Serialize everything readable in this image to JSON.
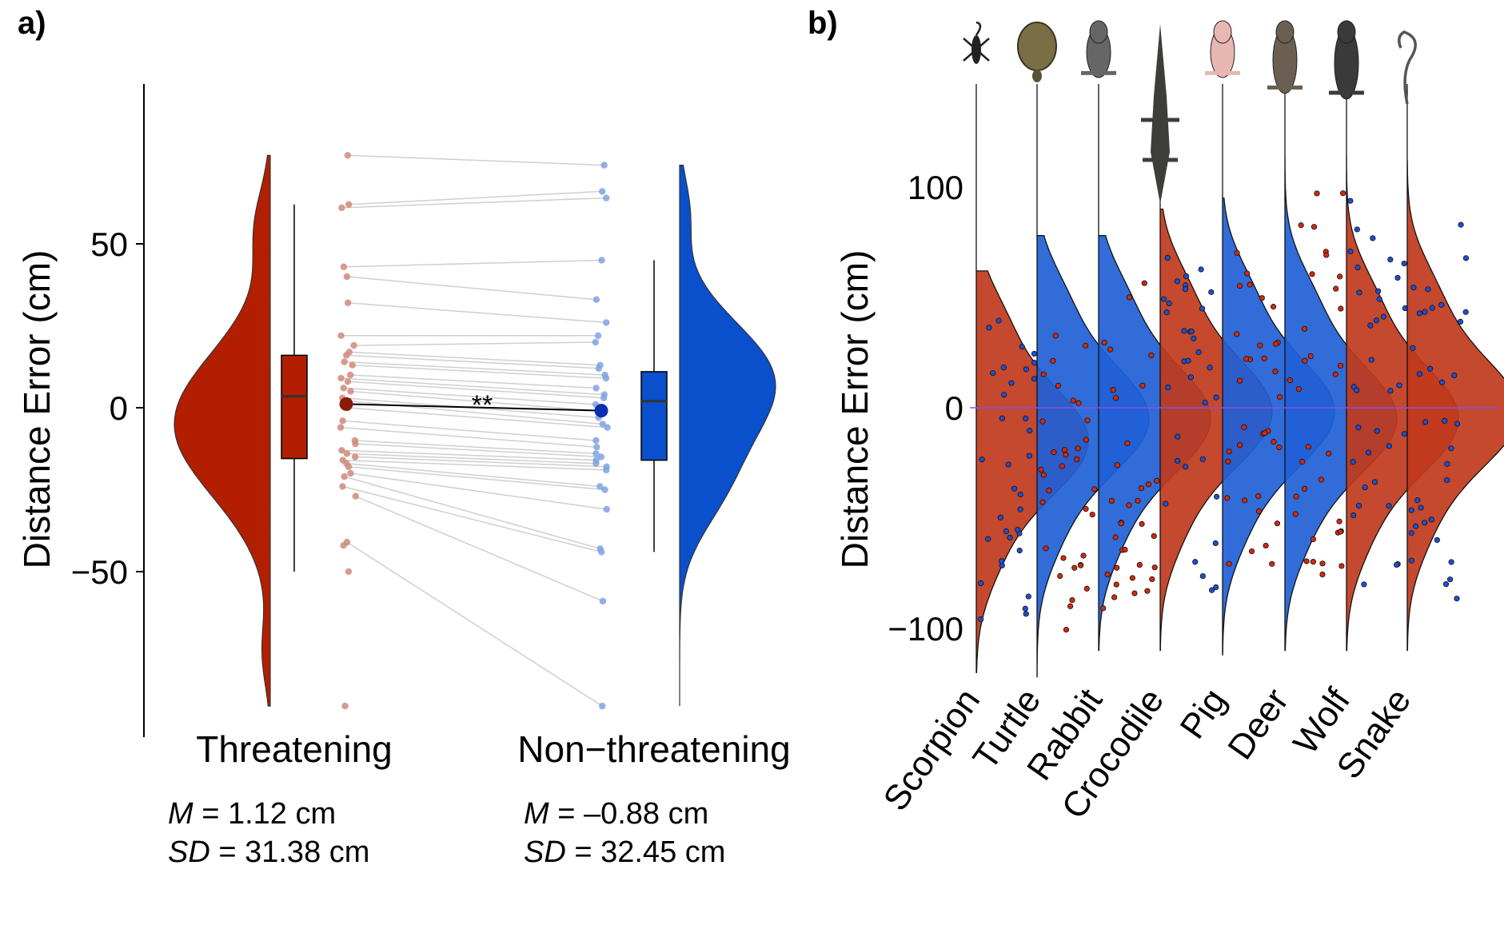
{
  "panel_labels": {
    "a": "a)",
    "b": "b)"
  },
  "chart_data": [
    {
      "type": "raincloud",
      "panel": "a)",
      "ylabel": "Distance Error (cm)",
      "yticks": [
        50,
        0,
        -50
      ],
      "ytick_labels": [
        "50",
        "0",
        "−50"
      ],
      "ylim": [
        -100,
        98
      ],
      "significance": "**",
      "colors": {
        "threatening": "#B21F00",
        "non_threatening": "#0A4FCC"
      },
      "series": [
        {
          "name": "Threatening",
          "mean": 1.12,
          "box": {
            "min": -50,
            "q1": -15.5,
            "median": 3.5,
            "q3": 16,
            "max": 62
          },
          "points": [
            77,
            62,
            61,
            43,
            40,
            32,
            22,
            19,
            17,
            16,
            14,
            13,
            10,
            9,
            8,
            6,
            5,
            3,
            2,
            0,
            -4,
            -6,
            -10,
            -11,
            -13,
            -14,
            -15,
            -16,
            -17,
            -18,
            -20,
            -21,
            -24,
            -27,
            -41,
            -42,
            -50,
            -91
          ],
          "stats": {
            "M_label": "M",
            "M_value": " = 1.12 cm",
            "SD_label": "SD",
            "SD_value": " = 31.38 cm"
          }
        },
        {
          "name": "Non−threatening",
          "mean": -0.88,
          "box": {
            "min": -44,
            "q1": -16,
            "median": 2,
            "q3": 11,
            "max": 45
          },
          "points": [
            74,
            66,
            64,
            45,
            33,
            26,
            22,
            20,
            13,
            12,
            10,
            9,
            6,
            4,
            3,
            1,
            -1,
            -3,
            -5,
            -6,
            -10,
            -12,
            -14,
            -15,
            -16,
            -17,
            -18,
            -19,
            -24,
            -25,
            -31,
            -43,
            -44,
            -59,
            -91
          ],
          "stats": {
            "M_label": "M",
            "M_value": " = –0.88 cm",
            "SD_label": "SD",
            "SD_value": " = 32.45 cm"
          }
        }
      ]
    },
    {
      "type": "violin",
      "panel": "b)",
      "ylabel": "Distance Error (cm)",
      "yticks": [
        100,
        0,
        -100
      ],
      "ytick_labels": [
        "100",
        "0",
        "−100"
      ],
      "ylim": [
        -130,
        165
      ],
      "reference_line": 0,
      "categories": [
        "Scorpion",
        "Turtle",
        "Rabbit",
        "Crocodile",
        "Pig",
        "Deer",
        "Wolf",
        "Snake"
      ],
      "condition": [
        "threatening",
        "non-threatening",
        "non-threatening",
        "threatening",
        "non-threatening",
        "non-threatening",
        "threatening",
        "threatening"
      ],
      "icons": [
        "scorpion-icon",
        "turtle-icon",
        "rabbit-icon",
        "crocodile-icon",
        "pig-icon",
        "deer-icon",
        "wolf-icon",
        "snake-icon"
      ],
      "mode": [
        -15,
        -5,
        -5,
        -2,
        -2,
        -5,
        -5,
        -2
      ],
      "range": [
        [
          -120,
          62
        ],
        [
          -122,
          78
        ],
        [
          -110,
          78
        ],
        [
          -110,
          90
        ],
        [
          -112,
          95
        ],
        [
          -110,
          125
        ],
        [
          -110,
          125
        ],
        [
          -110,
          112
        ]
      ]
    }
  ]
}
